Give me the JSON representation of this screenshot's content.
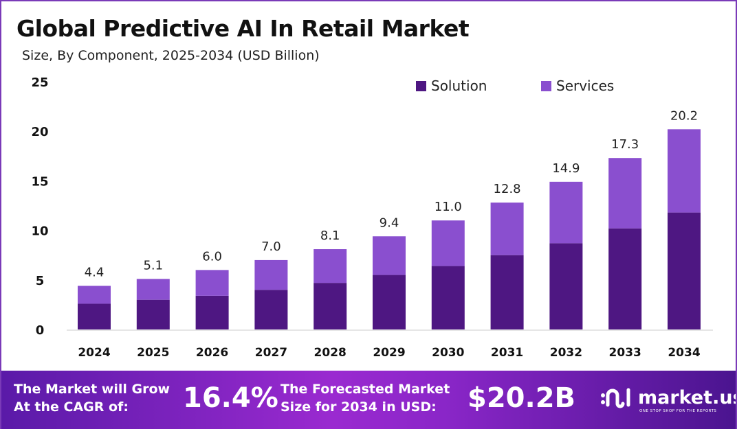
{
  "chart_data": {
    "type": "bar",
    "stacked": true,
    "title": "Global Predictive AI In Retail Market",
    "subtitle": "Size, By Component, 2025-2034 (USD Billion)",
    "categories": [
      "2024",
      "2025",
      "2026",
      "2027",
      "2028",
      "2029",
      "2030",
      "2031",
      "2032",
      "2033",
      "2034"
    ],
    "series": [
      {
        "name": "Solution",
        "color": "#4e1782",
        "values": [
          2.6,
          3.0,
          3.4,
          4.0,
          4.7,
          5.5,
          6.4,
          7.5,
          8.7,
          10.2,
          11.8
        ]
      },
      {
        "name": "Services",
        "color": "#8a4fcf",
        "values": [
          1.8,
          2.1,
          2.6,
          3.0,
          3.4,
          3.9,
          4.6,
          5.3,
          6.2,
          7.1,
          8.4
        ]
      }
    ],
    "totals_labels": [
      "4.4",
      "5.1",
      "6.0",
      "7.0",
      "8.1",
      "9.4",
      "11.0",
      "12.8",
      "14.9",
      "17.3",
      "20.2"
    ],
    "totals": [
      4.4,
      5.1,
      6.0,
      7.0,
      8.1,
      9.4,
      11.0,
      12.8,
      14.9,
      17.3,
      20.2
    ],
    "ylim": [
      0,
      25
    ],
    "yticks": [
      "0",
      "5",
      "10",
      "15",
      "20",
      "25"
    ],
    "grid": false,
    "legend_position": "top-right"
  },
  "footer": {
    "cagr_label_1": "The Market will Grow",
    "cagr_label_2": "At the CAGR of:",
    "cagr_value": "16.4%",
    "forecast_label_1": "The Forecasted Market",
    "forecast_label_2": "Size for 2034 in USD:",
    "forecast_value": "$20.2B",
    "logo_name": "market.us",
    "logo_tagline": "ONE STOP SHOP FOR THE REPORTS"
  }
}
